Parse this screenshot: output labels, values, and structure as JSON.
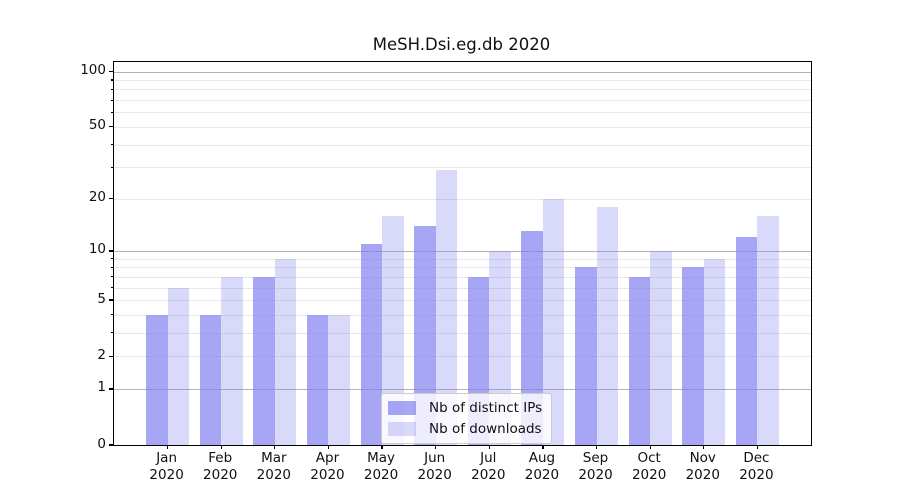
{
  "title": "MeSH.Dsi.eg.db 2020",
  "chart_data": {
    "type": "bar",
    "title": "MeSH.Dsi.eg.db 2020",
    "categories": [
      "Jan 2020",
      "Feb 2020",
      "Mar 2020",
      "Apr 2020",
      "May 2020",
      "Jun 2020",
      "Jul 2020",
      "Aug 2020",
      "Sep 2020",
      "Oct 2020",
      "Nov 2020",
      "Dec 2020"
    ],
    "series": [
      {
        "name": "Nb of distinct IPs",
        "color": "rgba(128,128,240,0.7)",
        "values": [
          4,
          4,
          7,
          4,
          11,
          14,
          7,
          13,
          8,
          7,
          8,
          12
        ]
      },
      {
        "name": "Nb of downloads",
        "color": "rgba(128,128,240,0.3)",
        "values": [
          6,
          7,
          9,
          4,
          16,
          29,
          10,
          20,
          18,
          10,
          9,
          16
        ]
      }
    ],
    "xlabel": "",
    "ylabel": "",
    "yscale": "log(1+x)",
    "yticks": [
      0,
      1,
      2,
      5,
      10,
      20,
      50,
      100
    ],
    "minor_gridlines": [
      2,
      3,
      4,
      5,
      6,
      7,
      8,
      9,
      20,
      30,
      40,
      50,
      60,
      70,
      80,
      90
    ],
    "major_gridlines": [
      1,
      10,
      100
    ],
    "ylim": [
      0,
      113
    ],
    "grid": "horizontal",
    "legend_position": "lower center",
    "colors": {
      "bar_base": "#8080f0",
      "major_grid": "#b3b3b3",
      "minor_grid": "#e7e7e7",
      "spine": "#000000",
      "text": "#111111",
      "legend_border": "#cccccc"
    }
  }
}
